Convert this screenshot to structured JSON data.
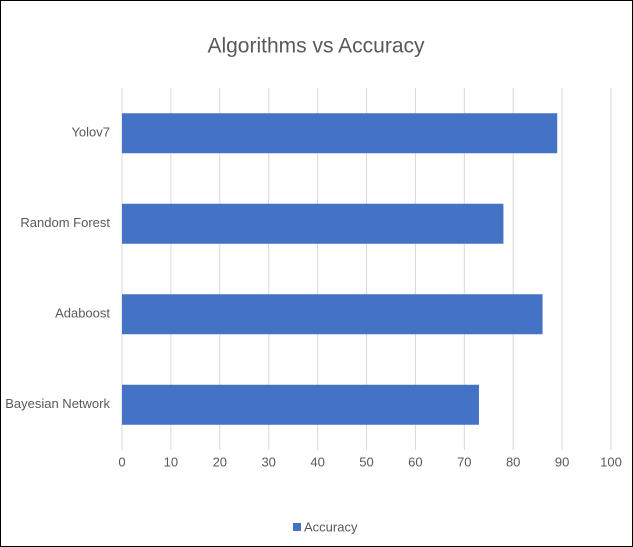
{
  "chart_data": {
    "type": "bar",
    "orientation": "horizontal",
    "title": "Algorithms vs Accuracy",
    "categories": [
      "Yolov7",
      "Random Forest",
      "Adaboost",
      "Bayesian Network"
    ],
    "series": [
      {
        "name": "Accuracy",
        "color": "#4472c4",
        "values": [
          89,
          78,
          86,
          73
        ]
      }
    ],
    "xlim": [
      0,
      100
    ],
    "xticks": [
      0,
      10,
      20,
      30,
      40,
      50,
      60,
      70,
      80,
      90,
      100
    ],
    "grid": true,
    "legend": "bottom"
  }
}
